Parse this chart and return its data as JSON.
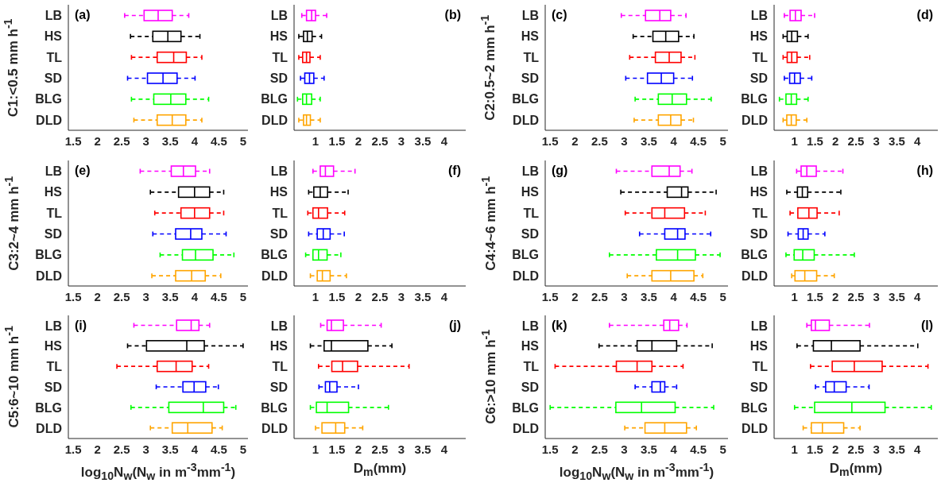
{
  "chart_data": [
    {
      "type": "box",
      "orientation": "horizontal",
      "ylabel": "C1:<0.5 mm h$^{-1}$",
      "annotations": [
        "(a)"
      ],
      "categories": [
        "LB",
        "HS",
        "TL",
        "SD",
        "BLG",
        "DLD"
      ],
      "colors": [
        "#ff00ff",
        "#000000",
        "#ff0000",
        "#0000ff",
        "#00ff00",
        "#ffa500"
      ],
      "line_style": "dashed",
      "xlim": [
        1.4,
        5.1
      ],
      "xticks": [
        1.5,
        2,
        2.5,
        3,
        3.5,
        4,
        4.5,
        5
      ],
      "boxes": [
        {
          "low": 2.56,
          "q1": 2.96,
          "median": 3.25,
          "q3": 3.54,
          "high": 3.88
        },
        {
          "low": 2.68,
          "q1": 3.14,
          "median": 3.45,
          "q3": 3.72,
          "high": 4.11
        },
        {
          "low": 2.7,
          "q1": 3.23,
          "median": 3.57,
          "q3": 3.83,
          "high": 4.15
        },
        {
          "low": 2.62,
          "q1": 3.03,
          "median": 3.35,
          "q3": 3.64,
          "high": 4.01
        },
        {
          "low": 2.7,
          "q1": 3.16,
          "median": 3.51,
          "q3": 3.82,
          "high": 4.29
        },
        {
          "low": 2.75,
          "q1": 3.23,
          "median": 3.54,
          "q3": 3.82,
          "high": 4.15
        }
      ]
    },
    {
      "type": "box",
      "orientation": "horizontal",
      "annotations": [
        "(b)"
      ],
      "categories": [
        "LB",
        "HS",
        "TL",
        "SD",
        "BLG",
        "DLD"
      ],
      "colors": [
        "#ff00ff",
        "#000000",
        "#ff0000",
        "#0000ff",
        "#00ff00",
        "#ffa500"
      ],
      "line_style": "dashed",
      "xlim": [
        0.5,
        4.5
      ],
      "xticks": [
        1,
        1.5,
        2,
        2.5,
        3,
        3.5,
        4
      ],
      "boxes": [
        {
          "low": 0.68,
          "q1": 0.79,
          "median": 0.91,
          "q3": 1.0,
          "high": 1.26
        },
        {
          "low": 0.61,
          "q1": 0.72,
          "median": 0.81,
          "q3": 0.92,
          "high": 1.14
        },
        {
          "low": 0.61,
          "q1": 0.7,
          "median": 0.79,
          "q3": 0.87,
          "high": 1.11
        },
        {
          "low": 0.65,
          "q1": 0.75,
          "median": 0.86,
          "q3": 0.96,
          "high": 1.2
        },
        {
          "low": 0.58,
          "q1": 0.7,
          "median": 0.79,
          "q3": 0.91,
          "high": 1.11
        },
        {
          "low": 0.61,
          "q1": 0.72,
          "median": 0.79,
          "q3": 0.88,
          "high": 1.11
        }
      ]
    },
    {
      "type": "box",
      "orientation": "horizontal",
      "ylabel": "C2:0.5~2 mm h$^{-1}$",
      "annotations": [
        "(c)"
      ],
      "categories": [
        "LB",
        "HS",
        "TL",
        "SD",
        "BLG",
        "DLD"
      ],
      "colors": [
        "#ff00ff",
        "#000000",
        "#ff0000",
        "#0000ff",
        "#00ff00",
        "#ffa500"
      ],
      "line_style": "dashed",
      "xlim": [
        1.4,
        5.1
      ],
      "xticks": [
        1.5,
        2,
        2.5,
        3,
        3.5,
        4,
        4.5,
        5
      ],
      "boxes": [
        {
          "low": 2.94,
          "q1": 3.43,
          "median": 3.72,
          "q3": 3.94,
          "high": 4.25
        },
        {
          "low": 3.18,
          "q1": 3.58,
          "median": 3.84,
          "q3": 4.1,
          "high": 4.41
        },
        {
          "low": 3.11,
          "q1": 3.63,
          "median": 3.91,
          "q3": 4.15,
          "high": 4.43
        },
        {
          "low": 3.03,
          "q1": 3.47,
          "median": 3.75,
          "q3": 4.0,
          "high": 4.38
        },
        {
          "low": 3.22,
          "q1": 3.69,
          "median": 3.97,
          "q3": 4.26,
          "high": 4.76
        },
        {
          "low": 3.2,
          "q1": 3.69,
          "median": 3.94,
          "q3": 4.15,
          "high": 4.4
        }
      ]
    },
    {
      "type": "box",
      "orientation": "horizontal",
      "annotations": [
        "(d)"
      ],
      "categories": [
        "LB",
        "HS",
        "TL",
        "SD",
        "BLG",
        "DLD"
      ],
      "colors": [
        "#ff00ff",
        "#000000",
        "#ff0000",
        "#0000ff",
        "#00ff00",
        "#ffa500"
      ],
      "line_style": "dashed",
      "xlim": [
        0.5,
        4.5
      ],
      "xticks": [
        1,
        1.5,
        2,
        2.5,
        3,
        3.5,
        4
      ],
      "boxes": [
        {
          "low": 0.75,
          "q1": 0.89,
          "median": 1.02,
          "q3": 1.16,
          "high": 1.49
        },
        {
          "low": 0.72,
          "q1": 0.82,
          "median": 0.93,
          "q3": 1.07,
          "high": 1.33
        },
        {
          "low": 0.72,
          "q1": 0.82,
          "median": 0.93,
          "q3": 1.06,
          "high": 1.37
        },
        {
          "low": 0.75,
          "q1": 0.88,
          "median": 1.0,
          "q3": 1.14,
          "high": 1.42
        },
        {
          "low": 0.63,
          "q1": 0.79,
          "median": 0.92,
          "q3": 1.05,
          "high": 1.33
        },
        {
          "low": 0.72,
          "q1": 0.81,
          "median": 0.92,
          "q3": 1.04,
          "high": 1.3
        }
      ]
    },
    {
      "type": "box",
      "orientation": "horizontal",
      "ylabel": "C3:2~4 mm h$^{-1}$",
      "annotations": [
        "(e)"
      ],
      "categories": [
        "LB",
        "HS",
        "TL",
        "SD",
        "BLG",
        "DLD"
      ],
      "colors": [
        "#ff00ff",
        "#000000",
        "#ff0000",
        "#0000ff",
        "#00ff00",
        "#ffa500"
      ],
      "line_style": "dashed",
      "xlim": [
        1.4,
        5.1
      ],
      "xticks": [
        1.5,
        2,
        2.5,
        3,
        3.5,
        4,
        4.5,
        5
      ],
      "boxes": [
        {
          "low": 2.88,
          "q1": 3.52,
          "median": 3.77,
          "q3": 4.02,
          "high": 4.31
        },
        {
          "low": 3.09,
          "q1": 3.67,
          "median": 4.0,
          "q3": 4.31,
          "high": 4.6
        },
        {
          "low": 3.18,
          "q1": 3.72,
          "median": 4.0,
          "q3": 4.31,
          "high": 4.6
        },
        {
          "low": 3.14,
          "q1": 3.61,
          "median": 3.92,
          "q3": 4.15,
          "high": 4.65
        },
        {
          "low": 3.29,
          "q1": 3.75,
          "median": 4.02,
          "q3": 4.38,
          "high": 4.81
        },
        {
          "low": 3.12,
          "q1": 3.61,
          "median": 3.94,
          "q3": 4.22,
          "high": 4.54
        }
      ]
    },
    {
      "type": "box",
      "orientation": "horizontal",
      "annotations": [
        "(f)"
      ],
      "categories": [
        "LB",
        "HS",
        "TL",
        "SD",
        "BLG",
        "DLD"
      ],
      "colors": [
        "#ff00ff",
        "#000000",
        "#ff0000",
        "#0000ff",
        "#00ff00",
        "#ffa500"
      ],
      "line_style": "dashed",
      "xlim": [
        0.5,
        4.5
      ],
      "xticks": [
        1,
        1.5,
        2,
        2.5,
        3,
        3.5,
        4
      ],
      "boxes": [
        {
          "low": 0.94,
          "q1": 1.11,
          "median": 1.23,
          "q3": 1.42,
          "high": 1.92
        },
        {
          "low": 0.84,
          "q1": 0.96,
          "median": 1.11,
          "q3": 1.28,
          "high": 1.76
        },
        {
          "low": 0.82,
          "q1": 0.94,
          "median": 1.07,
          "q3": 1.28,
          "high": 1.68
        },
        {
          "low": 0.84,
          "q1": 1.04,
          "median": 1.18,
          "q3": 1.34,
          "high": 1.67
        },
        {
          "low": 0.77,
          "q1": 0.94,
          "median": 1.07,
          "q3": 1.27,
          "high": 1.59
        },
        {
          "low": 0.88,
          "q1": 1.04,
          "median": 1.16,
          "q3": 1.34,
          "high": 1.72
        }
      ]
    },
    {
      "type": "box",
      "orientation": "horizontal",
      "ylabel": "C4:4~6 mm h$^{-1}$",
      "annotations": [
        "(g)"
      ],
      "categories": [
        "LB",
        "HS",
        "TL",
        "SD",
        "BLG",
        "DLD"
      ],
      "colors": [
        "#ff00ff",
        "#000000",
        "#ff0000",
        "#0000ff",
        "#00ff00",
        "#ffa500"
      ],
      "line_style": "dashed",
      "xlim": [
        1.4,
        5.1
      ],
      "xticks": [
        1.5,
        2,
        2.5,
        3,
        3.5,
        4,
        4.5,
        5
      ],
      "boxes": [
        {
          "low": 2.84,
          "q1": 3.56,
          "median": 3.91,
          "q3": 4.13,
          "high": 4.37
        },
        {
          "low": 2.93,
          "q1": 3.87,
          "median": 4.16,
          "q3": 4.29,
          "high": 4.86
        },
        {
          "low": 3.02,
          "q1": 3.56,
          "median": 3.82,
          "q3": 4.22,
          "high": 4.64
        },
        {
          "low": 3.31,
          "q1": 3.82,
          "median": 4.08,
          "q3": 4.23,
          "high": 4.75
        },
        {
          "low": 2.7,
          "q1": 3.65,
          "median": 4.08,
          "q3": 4.44,
          "high": 4.94
        },
        {
          "low": 3.06,
          "q1": 3.56,
          "median": 3.94,
          "q3": 4.41,
          "high": 4.59
        }
      ]
    },
    {
      "type": "box",
      "orientation": "horizontal",
      "annotations": [
        "(h)"
      ],
      "categories": [
        "LB",
        "HS",
        "TL",
        "SD",
        "BLG",
        "DLD"
      ],
      "colors": [
        "#ff00ff",
        "#000000",
        "#ff0000",
        "#0000ff",
        "#00ff00",
        "#ffa500"
      ],
      "line_style": "dashed",
      "xlim": [
        0.5,
        4.5
      ],
      "xticks": [
        1,
        1.5,
        2,
        2.5,
        3,
        3.5,
        4
      ],
      "boxes": [
        {
          "low": 1.05,
          "q1": 1.16,
          "median": 1.3,
          "q3": 1.53,
          "high": 2.18
        },
        {
          "low": 0.81,
          "q1": 1.07,
          "median": 1.19,
          "q3": 1.32,
          "high": 2.13
        },
        {
          "low": 0.89,
          "q1": 1.08,
          "median": 1.35,
          "q3": 1.55,
          "high": 2.09
        },
        {
          "low": 0.84,
          "q1": 1.09,
          "median": 1.21,
          "q3": 1.33,
          "high": 1.74
        },
        {
          "low": 0.79,
          "q1": 0.99,
          "median": 1.2,
          "q3": 1.48,
          "high": 2.46
        },
        {
          "low": 0.93,
          "q1": 1.01,
          "median": 1.25,
          "q3": 1.54,
          "high": 1.97
        }
      ]
    },
    {
      "type": "box",
      "orientation": "horizontal",
      "ylabel": "C5:6~10 mm h$^{-1}$",
      "xlabel": "log$_{10}$N$_{w}$(N$_{w}$ in m$^{-3}$mm$^{-1}$)",
      "annotations": [
        "(i)"
      ],
      "categories": [
        "LB",
        "HS",
        "TL",
        "SD",
        "BLG",
        "DLD"
      ],
      "colors": [
        "#ff00ff",
        "#000000",
        "#ff0000",
        "#0000ff",
        "#00ff00",
        "#ffa500"
      ],
      "line_style": "dashed",
      "xlim": [
        1.4,
        5.1
      ],
      "xticks": [
        1.5,
        2,
        2.5,
        3,
        3.5,
        4,
        4.5,
        5
      ],
      "boxes": [
        {
          "low": 2.75,
          "q1": 3.63,
          "median": 3.93,
          "q3": 4.09,
          "high": 4.31
        },
        {
          "low": 2.62,
          "q1": 3.01,
          "median": 3.84,
          "q3": 4.2,
          "high": 5.0
        },
        {
          "low": 2.4,
          "q1": 3.23,
          "median": 3.62,
          "q3": 3.95,
          "high": 4.29
        },
        {
          "low": 3.21,
          "q1": 3.76,
          "median": 3.99,
          "q3": 4.23,
          "high": 4.49
        },
        {
          "low": 2.69,
          "q1": 3.47,
          "median": 4.18,
          "q3": 4.6,
          "high": 4.85
        },
        {
          "low": 3.09,
          "q1": 3.54,
          "median": 3.86,
          "q3": 4.36,
          "high": 4.57
        }
      ]
    },
    {
      "type": "box",
      "orientation": "horizontal",
      "xlabel": "D$_{m}$(mm)",
      "annotations": [
        "(j)"
      ],
      "categories": [
        "LB",
        "HS",
        "TL",
        "SD",
        "BLG",
        "DLD"
      ],
      "colors": [
        "#ff00ff",
        "#000000",
        "#ff0000",
        "#0000ff",
        "#00ff00",
        "#ffa500"
      ],
      "line_style": "dashed",
      "xlim": [
        0.5,
        4.5
      ],
      "xticks": [
        1,
        1.5,
        2,
        2.5,
        3,
        3.5,
        4
      ],
      "boxes": [
        {
          "low": 1.12,
          "q1": 1.27,
          "median": 1.37,
          "q3": 1.65,
          "high": 2.53
        },
        {
          "low": 0.88,
          "q1": 1.2,
          "median": 1.37,
          "q3": 2.22,
          "high": 2.78
        },
        {
          "low": 1.07,
          "q1": 1.38,
          "median": 1.63,
          "q3": 1.98,
          "high": 3.18
        },
        {
          "low": 1.08,
          "q1": 1.23,
          "median": 1.33,
          "q3": 1.5,
          "high": 2.0
        },
        {
          "low": 0.88,
          "q1": 1.02,
          "median": 1.27,
          "q3": 1.77,
          "high": 2.7
        },
        {
          "low": 1.0,
          "q1": 1.15,
          "median": 1.47,
          "q3": 1.68,
          "high": 2.1
        }
      ]
    },
    {
      "type": "box",
      "orientation": "horizontal",
      "ylabel": "C6:>10 mm h$^{-1}$",
      "xlabel": "log$_{10}$N$_{w}$(N$_{w}$ in m$^{-3}$mm$^{-1}$)",
      "annotations": [
        "(k)"
      ],
      "categories": [
        "LB",
        "HS",
        "TL",
        "SD",
        "BLG",
        "DLD"
      ],
      "colors": [
        "#ff00ff",
        "#000000",
        "#ff0000",
        "#0000ff",
        "#00ff00",
        "#ffa500"
      ],
      "line_style": "dashed",
      "xlim": [
        1.4,
        5.1
      ],
      "xticks": [
        1.5,
        2,
        2.5,
        3,
        3.5,
        4,
        4.5,
        5
      ],
      "boxes": [
        {
          "low": 2.7,
          "q1": 3.8,
          "median": 3.92,
          "q3": 4.1,
          "high": 4.27
        },
        {
          "low": 2.49,
          "q1": 3.26,
          "median": 3.56,
          "q3": 4.06,
          "high": 4.78
        },
        {
          "low": 1.6,
          "q1": 2.84,
          "median": 3.26,
          "q3": 3.56,
          "high": 4.19
        },
        {
          "low": 3.22,
          "q1": 3.56,
          "median": 3.73,
          "q3": 3.82,
          "high": 4.06
        },
        {
          "low": 1.5,
          "q1": 2.83,
          "median": 3.35,
          "q3": 4.03,
          "high": 4.81
        },
        {
          "low": 3.01,
          "q1": 3.42,
          "median": 3.82,
          "q3": 4.26,
          "high": 4.46
        }
      ]
    },
    {
      "type": "box",
      "orientation": "horizontal",
      "xlabel": "D$_{m}$(mm)",
      "annotations": [
        "(l)"
      ],
      "categories": [
        "LB",
        "HS",
        "TL",
        "SD",
        "BLG",
        "DLD"
      ],
      "colors": [
        "#ff00ff",
        "#000000",
        "#ff0000",
        "#0000ff",
        "#00ff00",
        "#ffa500"
      ],
      "line_style": "dashed",
      "xlim": [
        0.5,
        4.5
      ],
      "xticks": [
        1,
        1.5,
        2,
        2.5,
        3,
        3.5,
        4
      ],
      "boxes": [
        {
          "low": 1.3,
          "q1": 1.41,
          "median": 1.51,
          "q3": 1.85,
          "high": 2.83
        },
        {
          "low": 1.06,
          "q1": 1.46,
          "median": 1.9,
          "q3": 2.6,
          "high": 4.01
        },
        {
          "low": 1.39,
          "q1": 1.92,
          "median": 2.46,
          "q3": 3.14,
          "high": 4.26
        },
        {
          "low": 1.51,
          "q1": 1.76,
          "median": 1.97,
          "q3": 2.26,
          "high": 2.82
        },
        {
          "low": 1.0,
          "q1": 1.49,
          "median": 2.4,
          "q3": 3.21,
          "high": 4.34
        },
        {
          "low": 1.21,
          "q1": 1.41,
          "median": 1.68,
          "q3": 2.2,
          "high": 2.6
        }
      ]
    }
  ]
}
